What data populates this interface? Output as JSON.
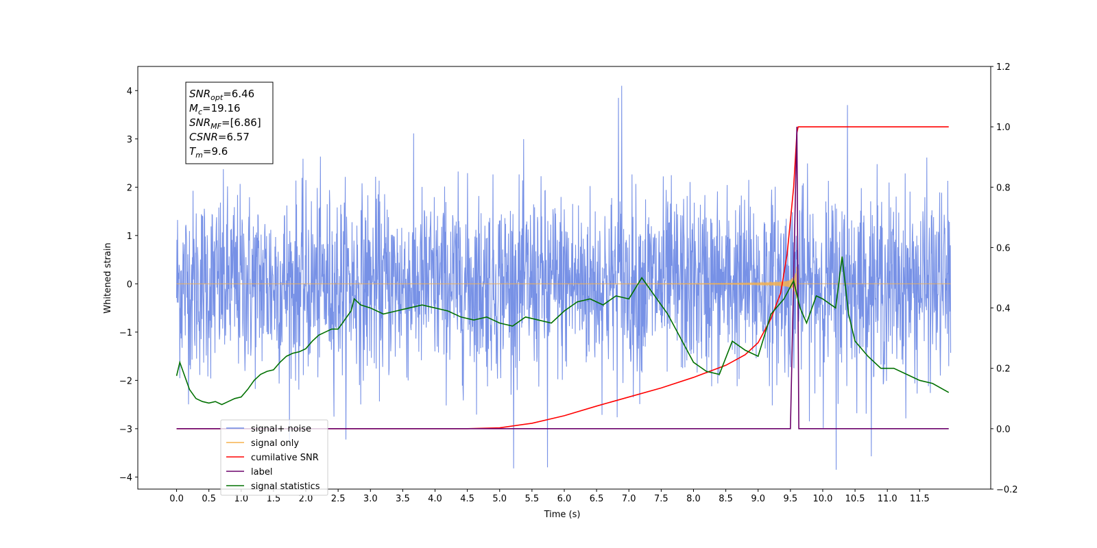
{
  "chart_data": {
    "type": "line",
    "xlabel": "Time (s)",
    "ylabel_left": "Whitened strain",
    "ylabel_right": "",
    "xlim": [
      -0.6,
      12.6
    ],
    "ylim_left": [
      -4.25,
      4.5
    ],
    "ylim_right": [
      -0.2,
      1.2
    ],
    "x_ticks": [
      "0.0",
      "0.5",
      "1.0",
      "1.5",
      "2.0",
      "2.5",
      "3.0",
      "3.5",
      "4.0",
      "4.5",
      "5.0",
      "5.5",
      "6.0",
      "6.5",
      "7.0",
      "7.5",
      "8.0",
      "8.5",
      "9.0",
      "9.5",
      "10.0",
      "10.5",
      "11.0",
      "11.5"
    ],
    "x_tick_values": [
      0.0,
      0.5,
      1.0,
      1.5,
      2.0,
      2.5,
      3.0,
      3.5,
      4.0,
      4.5,
      5.0,
      5.5,
      6.0,
      6.5,
      7.0,
      7.5,
      8.0,
      8.5,
      9.0,
      9.5,
      10.0,
      10.5,
      11.0,
      11.5
    ],
    "y_ticks_left": [
      "4",
      "3",
      "2",
      "1",
      "0",
      "−1",
      "−2",
      "−3",
      "−4"
    ],
    "y_tick_values_left": [
      4,
      3,
      2,
      1,
      0,
      -1,
      -2,
      -3,
      -4
    ],
    "y_ticks_right": [
      "1.2",
      "1.0",
      "0.8",
      "0.6",
      "0.4",
      "0.2",
      "0.0",
      "−0.2"
    ],
    "y_tick_values_right": [
      1.2,
      1.0,
      0.8,
      0.6,
      0.4,
      0.2,
      0.0,
      -0.2
    ],
    "legend_placement": "lower-left",
    "series": [
      {
        "name": "signal+ noise",
        "axis": "left",
        "color": "#6b88e4",
        "description_range": [
          -3.85,
          4.1
        ]
      },
      {
        "name": "signal only",
        "axis": "left",
        "color": "#f5b04d",
        "chirp_peak_time": 9.6,
        "peak_amplitude": 0.45
      },
      {
        "name": "cumilative SNR",
        "axis": "right",
        "color": "#ff0000",
        "x": [
          0.0,
          4.5,
          5.0,
          5.5,
          6.0,
          6.5,
          7.0,
          7.5,
          8.0,
          8.5,
          8.8,
          9.0,
          9.2,
          9.35,
          9.45,
          9.55,
          9.6,
          9.62,
          11.95
        ],
        "y": [
          0.0,
          0.0,
          0.003,
          0.018,
          0.043,
          0.075,
          0.105,
          0.135,
          0.17,
          0.21,
          0.245,
          0.285,
          0.365,
          0.45,
          0.58,
          0.8,
          0.98,
          1.0,
          1.0
        ]
      },
      {
        "name": "label",
        "axis": "right",
        "color": "#6a006a",
        "x": [
          0.0,
          9.5,
          9.6,
          9.63,
          11.95
        ],
        "y": [
          0.0,
          0.0,
          1.0,
          0.0,
          0.0
        ]
      },
      {
        "name": "signal statistics",
        "axis": "right",
        "color": "#007000",
        "x": [
          0.0,
          0.05,
          0.1,
          0.2,
          0.3,
          0.4,
          0.5,
          0.6,
          0.7,
          0.8,
          0.9,
          1.0,
          1.1,
          1.2,
          1.3,
          1.4,
          1.5,
          1.6,
          1.7,
          1.8,
          1.9,
          2.0,
          2.1,
          2.2,
          2.3,
          2.4,
          2.5,
          2.6,
          2.7,
          2.75,
          2.85,
          3.0,
          3.2,
          3.4,
          3.6,
          3.8,
          4.0,
          4.2,
          4.4,
          4.6,
          4.8,
          5.0,
          5.2,
          5.4,
          5.6,
          5.8,
          6.0,
          6.2,
          6.4,
          6.6,
          6.8,
          7.0,
          7.2,
          7.4,
          7.6,
          7.8,
          8.0,
          8.2,
          8.4,
          8.6,
          8.8,
          9.0,
          9.2,
          9.4,
          9.55,
          9.65,
          9.75,
          9.9,
          10.0,
          10.2,
          10.3,
          10.4,
          10.5,
          10.7,
          10.9,
          11.1,
          11.3,
          11.5,
          11.7,
          11.95
        ],
        "y": [
          0.175,
          0.22,
          0.19,
          0.13,
          0.1,
          0.09,
          0.085,
          0.09,
          0.08,
          0.09,
          0.1,
          0.105,
          0.13,
          0.16,
          0.18,
          0.19,
          0.195,
          0.22,
          0.24,
          0.25,
          0.255,
          0.265,
          0.29,
          0.31,
          0.32,
          0.33,
          0.33,
          0.36,
          0.39,
          0.43,
          0.41,
          0.4,
          0.38,
          0.39,
          0.4,
          0.41,
          0.4,
          0.39,
          0.37,
          0.36,
          0.37,
          0.35,
          0.34,
          0.37,
          0.36,
          0.35,
          0.39,
          0.42,
          0.43,
          0.41,
          0.44,
          0.43,
          0.5,
          0.44,
          0.38,
          0.3,
          0.22,
          0.19,
          0.18,
          0.29,
          0.26,
          0.24,
          0.38,
          0.43,
          0.49,
          0.4,
          0.35,
          0.44,
          0.43,
          0.4,
          0.57,
          0.38,
          0.29,
          0.24,
          0.2,
          0.2,
          0.18,
          0.16,
          0.15,
          0.12
        ]
      }
    ],
    "annotation": {
      "lines": [
        {
          "base": "SNR",
          "sub": "opt",
          "value": "=6.46"
        },
        {
          "base": "M",
          "sub": "c",
          "value": "=19.16"
        },
        {
          "base": "SNR",
          "sub": "MF",
          "value": "=[6.86]"
        },
        {
          "base": "CSNR",
          "sub": "",
          "value": "=6.57"
        },
        {
          "base": "T",
          "sub": "m",
          "value": "=9.6"
        }
      ]
    },
    "legend": [
      "signal+ noise",
      "signal only",
      "cumilative SNR",
      "label",
      "signal statistics"
    ]
  }
}
